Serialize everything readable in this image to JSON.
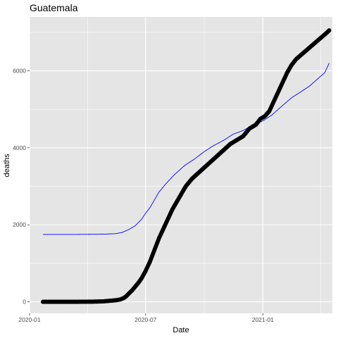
{
  "chart_data": {
    "type": "line",
    "title": "Guatemala",
    "xlabel": "Date",
    "ylabel": "deaths",
    "x_ticks": [
      {
        "date": "2020-01-01",
        "label": "2020-01"
      },
      {
        "date": "2020-07-01",
        "label": "2020-07"
      },
      {
        "date": "2021-01-01",
        "label": "2021-01"
      }
    ],
    "y_ticks": [
      0,
      2000,
      4000,
      6000
    ],
    "xlim": [
      "2020-01-01",
      "2021-04-20"
    ],
    "ylim": [
      -300,
      7400
    ],
    "grid": true,
    "legend": "none",
    "colors": {
      "panel": "#e5e5e5",
      "grid": "#ffffff",
      "observed": "#000000",
      "model": "#0000ff"
    },
    "series": [
      {
        "style": "points",
        "x": [
          "2020-01-22",
          "2020-02-15",
          "2020-03-15",
          "2020-04-10",
          "2020-04-25",
          "2020-05-05",
          "2020-05-15",
          "2020-05-22",
          "2020-05-28",
          "2020-06-01",
          "2020-06-05",
          "2020-06-10",
          "2020-06-15",
          "2020-06-20",
          "2020-06-25",
          "2020-07-01",
          "2020-07-08",
          "2020-07-15",
          "2020-07-22",
          "2020-07-29",
          "2020-08-05",
          "2020-08-12",
          "2020-08-19",
          "2020-08-26",
          "2020-09-02",
          "2020-09-12",
          "2020-09-22",
          "2020-10-02",
          "2020-10-12",
          "2020-10-22",
          "2020-11-01",
          "2020-11-11",
          "2020-11-21",
          "2020-12-01",
          "2020-12-11",
          "2020-12-21",
          "2020-12-28",
          "2021-01-04",
          "2021-01-11",
          "2021-01-18",
          "2021-01-25",
          "2021-02-01",
          "2021-02-08",
          "2021-02-15",
          "2021-02-22",
          "2021-03-01",
          "2021-03-08",
          "2021-03-15",
          "2021-03-22",
          "2021-03-29",
          "2021-04-05",
          "2021-04-12",
          "2021-04-15"
        ],
        "y": [
          0,
          0,
          0,
          5,
          10,
          25,
          40,
          60,
          100,
          150,
          220,
          300,
          400,
          500,
          620,
          800,
          1050,
          1350,
          1650,
          1900,
          2150,
          2400,
          2600,
          2800,
          3000,
          3200,
          3350,
          3500,
          3650,
          3800,
          3950,
          4100,
          4200,
          4300,
          4500,
          4600,
          4750,
          4820,
          4950,
          5200,
          5450,
          5700,
          5950,
          6150,
          6300,
          6400,
          6500,
          6600,
          6700,
          6800,
          6900,
          7000,
          7050
        ]
      },
      {
        "style": "line",
        "x": [
          "2020-01-22",
          "2020-02-15",
          "2020-03-15",
          "2020-04-15",
          "2020-05-01",
          "2020-05-15",
          "2020-05-25",
          "2020-06-05",
          "2020-06-15",
          "2020-06-25",
          "2020-07-01",
          "2020-07-08",
          "2020-07-15",
          "2020-07-22",
          "2020-08-01",
          "2020-08-15",
          "2020-09-01",
          "2020-09-15",
          "2020-10-01",
          "2020-10-15",
          "2020-11-01",
          "2020-11-15",
          "2020-12-01",
          "2020-12-15",
          "2021-01-01",
          "2021-01-15",
          "2021-02-01",
          "2021-02-15",
          "2021-03-01",
          "2021-03-15",
          "2021-04-01",
          "2021-04-08",
          "2021-04-15"
        ],
        "y": [
          1750,
          1750,
          1750,
          1755,
          1760,
          1770,
          1800,
          1880,
          1980,
          2150,
          2300,
          2450,
          2650,
          2850,
          3050,
          3300,
          3550,
          3700,
          3900,
          4050,
          4200,
          4350,
          4450,
          4580,
          4700,
          4850,
          5100,
          5300,
          5450,
          5600,
          5850,
          5950,
          6200
        ]
      }
    ]
  }
}
